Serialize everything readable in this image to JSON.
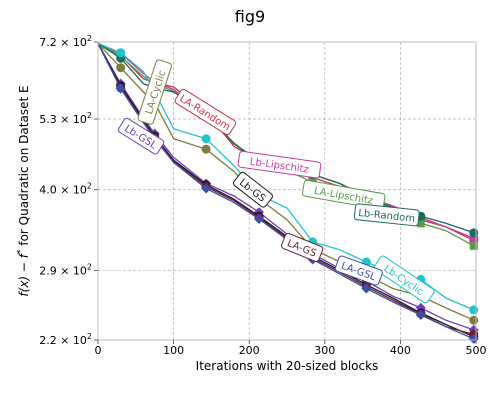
{
  "chart_data": {
    "type": "line",
    "title": "fig9",
    "xlabel": "Iterations with 20-sized blocks",
    "ylabel": "f(x) − f* for Quadratic on Dataset E",
    "ylabel_parts": {
      "pre": "f(x) − f",
      "sup": "*",
      "post": " for Quadratic on Dataset E"
    },
    "xlim": [
      0,
      500
    ],
    "ylim_log": [
      220,
      720
    ],
    "y_scale": "log",
    "grid": true,
    "xticks": [
      {
        "v": 0,
        "label": "0"
      },
      {
        "v": 100,
        "label": "100"
      },
      {
        "v": 200,
        "label": "200"
      },
      {
        "v": 300,
        "label": "300"
      },
      {
        "v": 400,
        "label": "400"
      },
      {
        "v": 500,
        "label": "500"
      }
    ],
    "yticks": [
      {
        "v": 720,
        "base": "7.2 × 10",
        "exp": "2"
      },
      {
        "v": 530,
        "base": "5.3 × 10",
        "exp": "2"
      },
      {
        "v": 400,
        "base": "4.0 × 10",
        "exp": "2"
      },
      {
        "v": 290,
        "base": "2.9 × 10",
        "exp": "2"
      },
      {
        "v": 220,
        "base": "2.2 × 10",
        "exp": "2"
      }
    ],
    "series": [
      {
        "name": "LA-Cyclic",
        "color": "#7d7d3c",
        "marker": "circle",
        "x": [
          0,
          30,
          60,
          75,
          100,
          143,
          180,
          213,
          250,
          284,
          320,
          355,
          390,
          427,
          460,
          497
        ],
        "y": [
          716,
          650,
          590,
          565,
          490,
          470,
          430,
          386,
          355,
          316,
          300,
          285,
          270,
          262,
          250,
          238
        ],
        "label": {
          "x": 75,
          "y": 590,
          "angle": -72
        }
      },
      {
        "name": "LA-Random",
        "color": "#cc3344",
        "marker": "circle",
        "x": [
          0,
          30,
          60,
          75,
          100,
          143,
          180,
          213,
          250,
          284,
          320,
          355,
          390,
          427,
          460,
          497
        ],
        "y": [
          716,
          682,
          622,
          612,
          602,
          545,
          475,
          448,
          438,
          420,
          405,
          386,
          370,
          355,
          345,
          327
        ],
        "label": {
          "x": 142,
          "y": 545,
          "angle": 32
        }
      },
      {
        "name": "Lb-Lipschitz",
        "color": "#c73aa3",
        "marker": "circle",
        "x": [
          0,
          30,
          60,
          75,
          100,
          143,
          180,
          213,
          250,
          284,
          320,
          355,
          390,
          427,
          460,
          497
        ],
        "y": [
          716,
          688,
          635,
          614,
          596,
          540,
          480,
          450,
          438,
          425,
          410,
          390,
          375,
          358,
          345,
          330
        ],
        "label": {
          "x": 240,
          "y": 442,
          "angle": 8
        }
      },
      {
        "name": "LA-Lipschitz",
        "color": "#5a9a48",
        "marker": "square",
        "x": [
          0,
          30,
          60,
          75,
          100,
          143,
          180,
          213,
          250,
          284,
          320,
          355,
          390,
          427,
          460,
          497
        ],
        "y": [
          716,
          680,
          628,
          610,
          592,
          538,
          482,
          446,
          432,
          412,
          402,
          387,
          372,
          350,
          340,
          320
        ],
        "label": {
          "x": 325,
          "y": 392,
          "angle": 10
        }
      },
      {
        "name": "Lb-Random",
        "color": "#1e6a5a",
        "marker": "circle",
        "x": [
          0,
          30,
          60,
          75,
          100,
          143,
          180,
          213,
          250,
          284,
          320,
          355,
          390,
          427,
          460,
          497
        ],
        "y": [
          716,
          675,
          610,
          600,
          590,
          542,
          480,
          446,
          438,
          425,
          410,
          388,
          373,
          360,
          350,
          337
        ],
        "label": {
          "x": 382,
          "y": 362,
          "angle": 6
        }
      },
      {
        "name": "Lb-Cyclic",
        "color": "#20c4cc",
        "marker": "circle",
        "x": [
          0,
          30,
          60,
          75,
          100,
          143,
          180,
          213,
          250,
          284,
          320,
          355,
          390,
          427,
          460,
          497
        ],
        "y": [
          716,
          690,
          640,
          590,
          510,
          490,
          440,
          392,
          372,
          325,
          315,
          300,
          287,
          280,
          260,
          248
        ],
        "label": {
          "x": 405,
          "y": 280,
          "angle": 34
        }
      },
      {
        "name": "Lb-GSL",
        "color": "#6a3fbf",
        "marker": "diamond",
        "x": [
          0,
          30,
          60,
          75,
          100,
          143,
          180,
          213,
          250,
          284,
          320,
          355,
          390,
          427,
          460,
          497
        ],
        "y": [
          716,
          610,
          532,
          500,
          455,
          410,
          390,
          366,
          335,
          310,
          292,
          278,
          262,
          250,
          238,
          229
        ],
        "label": {
          "x": 57,
          "y": 495,
          "angle": 32
        }
      },
      {
        "name": "Lb-GS",
        "color": "#1c1c1c",
        "marker": "circle",
        "x": [
          0,
          30,
          60,
          75,
          100,
          143,
          180,
          213,
          250,
          284,
          320,
          355,
          390,
          427,
          460,
          497
        ],
        "y": [
          716,
          605,
          528,
          495,
          450,
          408,
          385,
          360,
          332,
          307,
          290,
          274,
          260,
          245,
          234,
          223
        ],
        "label": {
          "x": 205,
          "y": 400,
          "angle": 38
        }
      },
      {
        "name": "LA-GS",
        "color": "#6b1f33",
        "marker": "circle",
        "x": [
          0,
          30,
          60,
          75,
          100,
          143,
          180,
          213,
          250,
          284,
          320,
          355,
          390,
          427,
          460,
          497
        ],
        "y": [
          716,
          600,
          525,
          492,
          448,
          405,
          383,
          358,
          330,
          305,
          288,
          272,
          258,
          244,
          232,
          225
        ],
        "label": {
          "x": 270,
          "y": 318,
          "angle": 22
        }
      },
      {
        "name": "LA-GSL",
        "color": "#3c4fa8",
        "marker": "diamond",
        "x": [
          0,
          30,
          60,
          75,
          100,
          143,
          180,
          213,
          250,
          284,
          320,
          355,
          390,
          427,
          460,
          497
        ],
        "y": [
          716,
          598,
          522,
          490,
          446,
          402,
          380,
          356,
          328,
          303,
          286,
          270,
          256,
          243,
          232,
          221
        ],
        "label": {
          "x": 345,
          "y": 290,
          "angle": 20
        }
      }
    ]
  }
}
